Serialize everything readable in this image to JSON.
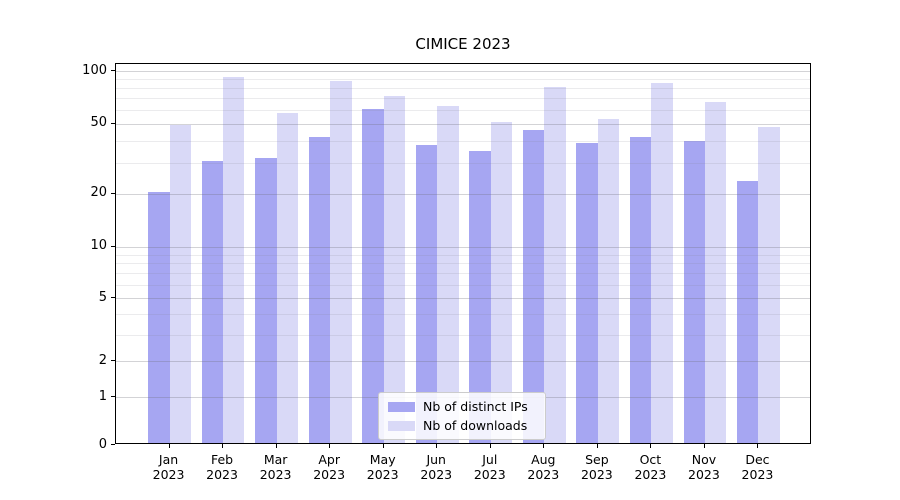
{
  "title": "CIMICE 2023",
  "colors": {
    "distinct_ips": "#a6a6f2",
    "downloads": "#d9d9f7",
    "axis": "#000000",
    "legend_border": "#cccccc"
  },
  "legend": {
    "items": [
      {
        "label": "Nb of distinct IPs",
        "series": "distinct_ips"
      },
      {
        "label": "Nb of downloads",
        "series": "downloads"
      }
    ],
    "position": "lower center"
  },
  "y_axis": {
    "scale": "asinh-log",
    "tick_labels": [
      "100",
      "50",
      "20",
      "10",
      "5",
      "2",
      "1",
      "0"
    ],
    "tick_values": [
      100,
      50,
      20,
      10,
      5,
      2,
      1,
      0
    ],
    "minor_gridline_values": [
      3,
      4,
      6,
      7,
      8,
      9,
      30,
      40,
      60,
      70,
      80,
      90
    ],
    "major_gridline_values": [
      1,
      2,
      5,
      10,
      20,
      50,
      100
    ]
  },
  "x_axis": {
    "categories": [
      {
        "month": "Jan",
        "year": "2023"
      },
      {
        "month": "Feb",
        "year": "2023"
      },
      {
        "month": "Mar",
        "year": "2023"
      },
      {
        "month": "Apr",
        "year": "2023"
      },
      {
        "month": "May",
        "year": "2023"
      },
      {
        "month": "Jun",
        "year": "2023"
      },
      {
        "month": "Jul",
        "year": "2023"
      },
      {
        "month": "Aug",
        "year": "2023"
      },
      {
        "month": "Sep",
        "year": "2023"
      },
      {
        "month": "Oct",
        "year": "2023"
      },
      {
        "month": "Nov",
        "year": "2023"
      },
      {
        "month": "Dec",
        "year": "2023"
      }
    ]
  },
  "chart_data": {
    "type": "bar",
    "title": "CIMICE 2023",
    "categories": [
      "Jan 2023",
      "Feb 2023",
      "Mar 2023",
      "Apr 2023",
      "May 2023",
      "Jun 2023",
      "Jul 2023",
      "Aug 2023",
      "Sep 2023",
      "Oct 2023",
      "Nov 2023",
      "Dec 2023"
    ],
    "series": [
      {
        "name": "Nb of distinct IPs",
        "color": "#a6a6f2",
        "values": [
          20,
          30,
          31,
          41,
          59,
          37,
          34,
          45,
          38,
          41,
          39,
          23
        ]
      },
      {
        "name": "Nb of downloads",
        "color": "#d9d9f7",
        "values": [
          48,
          90,
          56,
          86,
          70,
          62,
          50,
          79,
          52,
          83,
          65,
          47
        ]
      }
    ],
    "xlabel": "",
    "ylabel": "",
    "ylim": [
      0,
      100
    ],
    "yscale": "asinh (log-like above 2, linear near 0)",
    "yticks": [
      0,
      1,
      2,
      5,
      10,
      20,
      50,
      100
    ],
    "grid": true,
    "legend_position": "lower center"
  }
}
